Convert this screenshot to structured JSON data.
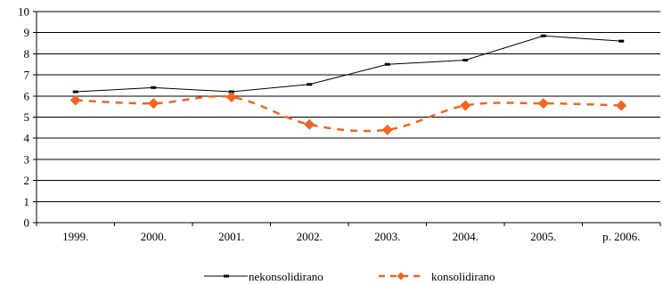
{
  "chart_data": {
    "type": "line",
    "categories": [
      "1999.",
      "2000.",
      "2001.",
      "2002.",
      "2003.",
      "2004.",
      "2005.",
      "p. 2006."
    ],
    "ylim": [
      0,
      10
    ],
    "yticks": [
      0,
      1,
      2,
      3,
      4,
      5,
      6,
      7,
      8,
      9,
      10
    ],
    "grid": true,
    "legend_position": "bottom",
    "series": [
      {
        "name": "nekonsolidirano",
        "values": [
          6.2,
          6.4,
          6.2,
          6.55,
          7.5,
          7.7,
          8.85,
          8.6
        ],
        "color": "#000000",
        "style": "solid-thin"
      },
      {
        "name": "konsolidirano",
        "values": [
          5.8,
          5.65,
          5.95,
          4.65,
          4.4,
          5.55,
          5.65,
          5.55
        ],
        "color": "#f26522",
        "style": "dashed-diamond"
      }
    ]
  }
}
